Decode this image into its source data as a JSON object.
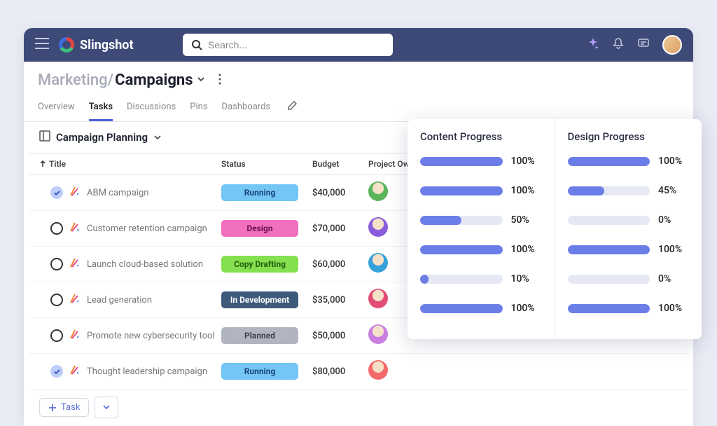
{
  "brand": "Slingshot",
  "search": {
    "placeholder": "Search..."
  },
  "breadcrumb": {
    "parent": "Marketing",
    "sep": "/",
    "current": "Campaigns"
  },
  "tabs": [
    "Overview",
    "Tasks",
    "Discussions",
    "Pins",
    "Dashboards"
  ],
  "active_tab_index": 1,
  "section": {
    "label": "Campaign Planning"
  },
  "columns": {
    "title": "Title",
    "status": "Status",
    "budget": "Budget",
    "owner": "Project Owner"
  },
  "tasks": [
    {
      "name": "ABM campaign",
      "checked": true,
      "status": "Running",
      "status_bg": "#73c6f5",
      "status_fg": "#1a447a",
      "budget": "$40,000",
      "owner_bg": "#5ab55a"
    },
    {
      "name": "Customer retention campaign",
      "checked": false,
      "status": "Design",
      "status_bg": "#f06fbf",
      "status_fg": "#6c1050",
      "budget": "$70,000",
      "owner_bg": "#8a5edb"
    },
    {
      "name": "Launch cloud-based solution",
      "checked": false,
      "status": "Copy Drafting",
      "status_bg": "#84e04e",
      "status_fg": "#275e0f",
      "budget": "$60,000",
      "owner_bg": "#36a2d9"
    },
    {
      "name": "Lead generation",
      "checked": false,
      "status": "In Development",
      "status_bg": "#3e5a7a",
      "status_fg": "#ffffff",
      "budget": "$35,000",
      "owner_bg": "#e24d74"
    },
    {
      "name": "Promote new cybersecurity tool",
      "checked": false,
      "status": "Planned",
      "status_bg": "#b0b5c1",
      "status_fg": "#3d414d",
      "budget": "$50,000",
      "owner_bg": "#c97de0"
    },
    {
      "name": "Thought leadership campaign",
      "checked": true,
      "status": "Running",
      "status_bg": "#73c6f5",
      "status_fg": "#1a447a",
      "budget": "$80,000",
      "owner_bg": "#f26a6a"
    }
  ],
  "add_task_label": "Task",
  "progress": {
    "col1_title": "Content Progress",
    "col2_title": "Design Progress",
    "bar_color": "#6b7ee8",
    "track_color": "#e6e9f5",
    "rows": [
      {
        "content": 100,
        "design": 100
      },
      {
        "content": 100,
        "design": 45
      },
      {
        "content": 50,
        "design": 0
      },
      {
        "content": 100,
        "design": 100
      },
      {
        "content": 10,
        "design": 0
      },
      {
        "content": 100,
        "design": 100
      }
    ]
  }
}
